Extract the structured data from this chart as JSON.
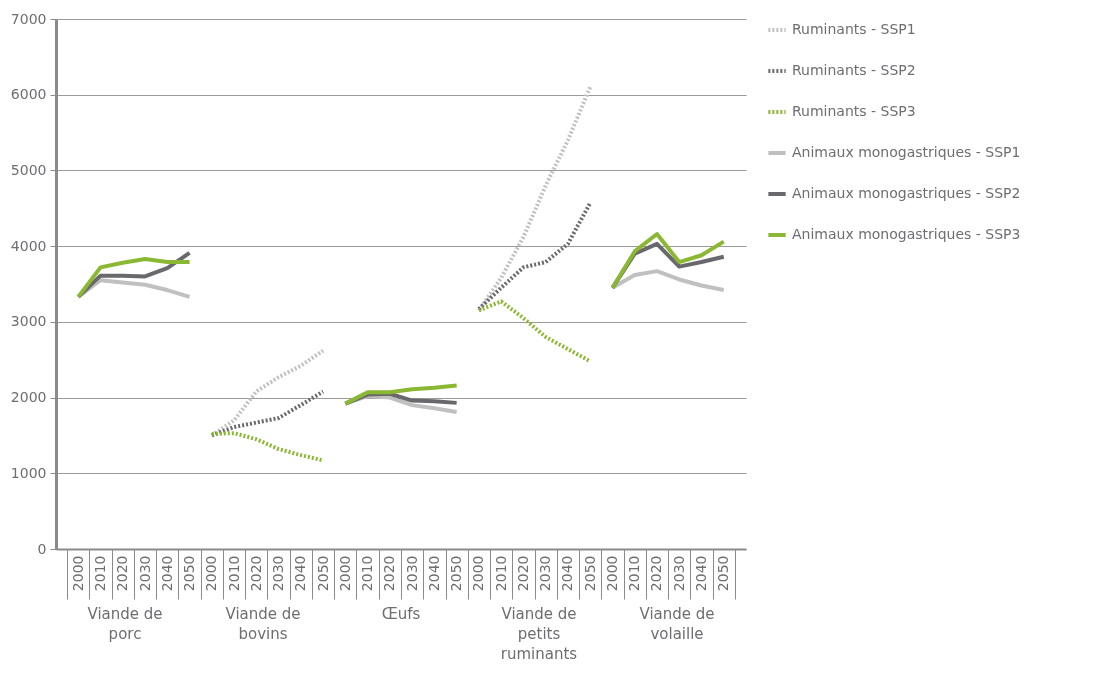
{
  "chart_data": {
    "type": "line",
    "categories": [
      "2000",
      "2010",
      "2020",
      "2030",
      "2040",
      "2050",
      "2000",
      "2010",
      "2020",
      "2030",
      "2040",
      "2050",
      "2000",
      "2010",
      "2020",
      "2030",
      "2040",
      "2050",
      "2000",
      "2010",
      "2020",
      "2030",
      "2040",
      "2050",
      "2000",
      "2010",
      "2020",
      "2030",
      "2040",
      "2050"
    ],
    "annotations": [
      "Viande de porc",
      "Viande de bovins",
      "Œufs",
      "Viande de petits ruminants",
      "Viande de volaille"
    ],
    "ylim": [
      0,
      7000
    ],
    "yticks": [
      0,
      1000,
      2000,
      3000,
      4000,
      5000,
      6000,
      7000
    ],
    "grid": "y",
    "legend": "right",
    "series": [
      {
        "name": "Ruminants - SSP1",
        "color": "#c0c0c0",
        "line_style": "dotted",
        "values": [
          null,
          null,
          null,
          null,
          null,
          null,
          1500,
          1700,
          2080,
          2270,
          2420,
          2620,
          null,
          null,
          null,
          null,
          null,
          null,
          3150,
          3580,
          4120,
          4800,
          5400,
          6100,
          null,
          null,
          null,
          null,
          null,
          null
        ]
      },
      {
        "name": "Ruminants - SSP2",
        "color": "#68686d",
        "line_style": "dotted",
        "values": [
          null,
          null,
          null,
          null,
          null,
          null,
          1500,
          1610,
          1670,
          1730,
          1900,
          2080,
          null,
          null,
          null,
          null,
          null,
          null,
          3170,
          3450,
          3720,
          3790,
          4030,
          4570,
          null,
          null,
          null,
          null,
          null,
          null
        ]
      },
      {
        "name": "Ruminants - SSP3",
        "color": "#8ab833",
        "line_style": "dotted",
        "values": [
          null,
          null,
          null,
          null,
          null,
          null,
          1520,
          1530,
          1450,
          1320,
          1240,
          1170,
          null,
          null,
          null,
          null,
          null,
          null,
          3150,
          3270,
          3050,
          2800,
          2640,
          2480,
          null,
          null,
          null,
          null,
          null,
          null
        ]
      },
      {
        "name": "Animaux monogastriques - SSP1",
        "color": "#c0c0c0",
        "line_style": "solid",
        "values": [
          3330,
          3550,
          3520,
          3490,
          3420,
          3330,
          null,
          null,
          null,
          null,
          null,
          null,
          1920,
          2020,
          2000,
          1900,
          1860,
          1810,
          null,
          null,
          null,
          null,
          null,
          null,
          3450,
          3620,
          3670,
          3560,
          3480,
          3420
        ]
      },
      {
        "name": "Animaux monogastriques - SSP2",
        "color": "#68686d",
        "line_style": "solid",
        "values": [
          3330,
          3610,
          3610,
          3600,
          3710,
          3910,
          null,
          null,
          null,
          null,
          null,
          null,
          1920,
          2040,
          2050,
          1960,
          1950,
          1930,
          null,
          null,
          null,
          null,
          null,
          null,
          3450,
          3900,
          4030,
          3730,
          3790,
          3860
        ]
      },
      {
        "name": "Animaux monogastriques - SSP3",
        "color": "#8ab833",
        "line_style": "solid",
        "values": [
          3330,
          3720,
          3780,
          3830,
          3790,
          3790,
          null,
          null,
          null,
          null,
          null,
          null,
          1920,
          2070,
          2070,
          2110,
          2130,
          2160,
          null,
          null,
          null,
          null,
          null,
          null,
          3450,
          3930,
          4160,
          3790,
          3880,
          4060
        ]
      }
    ]
  }
}
